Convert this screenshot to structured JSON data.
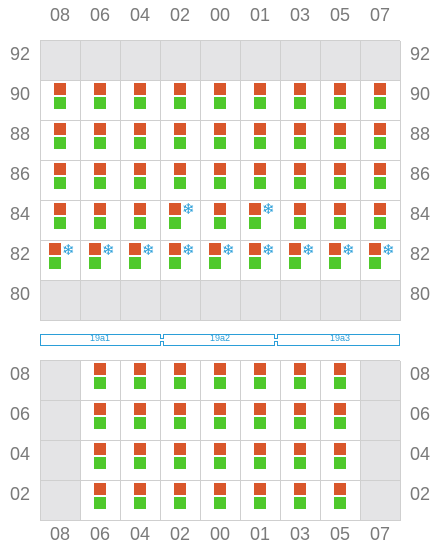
{
  "columns": [
    "08",
    "06",
    "04",
    "02",
    "00",
    "01",
    "03",
    "05",
    "07"
  ],
  "upper_rows": [
    "92",
    "90",
    "88",
    "86",
    "84",
    "82",
    "80"
  ],
  "lower_rows": [
    "08",
    "06",
    "04",
    "02"
  ],
  "tiers": [
    "19a1",
    "19a2",
    "19a3"
  ],
  "colors": {
    "container_top": "#d9572b",
    "container_bottom": "#4fc92c",
    "reefer": "#2b9ed8",
    "empty_slot": "#e4e4e6"
  },
  "upper_bay": {
    "92": [
      "empty",
      "empty",
      "empty",
      "empty",
      "empty",
      "empty",
      "empty",
      "empty",
      "empty"
    ],
    "90": [
      "full",
      "full",
      "full",
      "full",
      "full",
      "full",
      "full",
      "full",
      "full"
    ],
    "88": [
      "full",
      "full",
      "full",
      "full",
      "full",
      "full",
      "full",
      "full",
      "full"
    ],
    "86": [
      "full",
      "full",
      "full",
      "full",
      "full",
      "full",
      "full",
      "full",
      "full"
    ],
    "84": [
      "full",
      "full",
      "full",
      "full-reefer-top",
      "full",
      "full-reefer-top",
      "full",
      "full",
      "full"
    ],
    "82": [
      "reefer",
      "reefer",
      "reefer",
      "reefer",
      "reefer",
      "reefer",
      "reefer",
      "reefer",
      "reefer"
    ],
    "80": [
      "empty",
      "empty",
      "empty",
      "empty",
      "empty",
      "empty",
      "empty",
      "empty",
      "empty"
    ]
  },
  "lower_bay": {
    "08": [
      "empty",
      "full",
      "full",
      "full",
      "full",
      "full",
      "full",
      "full",
      "empty"
    ],
    "06": [
      "empty",
      "full",
      "full",
      "full",
      "full",
      "full",
      "full",
      "full",
      "empty"
    ],
    "04": [
      "empty",
      "full",
      "full",
      "full",
      "full",
      "full",
      "full",
      "full",
      "empty"
    ],
    "02": [
      "empty",
      "full",
      "full",
      "full",
      "full",
      "full",
      "full",
      "full",
      "empty"
    ]
  }
}
